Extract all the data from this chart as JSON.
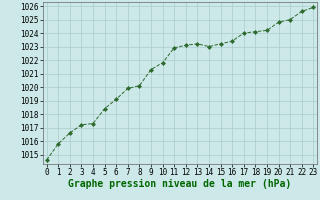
{
  "x": [
    0,
    1,
    2,
    3,
    4,
    5,
    6,
    7,
    8,
    9,
    10,
    11,
    12,
    13,
    14,
    15,
    16,
    17,
    18,
    19,
    20,
    21,
    22,
    23
  ],
  "y": [
    1014.6,
    1015.8,
    1016.6,
    1017.2,
    1017.3,
    1018.4,
    1019.1,
    1019.9,
    1020.1,
    1021.3,
    1021.8,
    1022.9,
    1023.1,
    1023.2,
    1023.0,
    1023.2,
    1023.4,
    1024.0,
    1024.1,
    1024.2,
    1024.8,
    1025.0,
    1025.6,
    1025.9
  ],
  "line_color": "#2d6a2d",
  "marker_color": "#2d6a2d",
  "bg_color": "#cce8e8",
  "grid_color": "#aacccc",
  "title": "Graphe pression niveau de la mer (hPa)",
  "title_color": "#006600",
  "ylim": [
    1014.3,
    1026.3
  ],
  "xlim": [
    -0.3,
    23.3
  ],
  "yticks": [
    1015,
    1016,
    1017,
    1018,
    1019,
    1020,
    1021,
    1022,
    1023,
    1024,
    1025,
    1026
  ],
  "xticks": [
    0,
    1,
    2,
    3,
    4,
    5,
    6,
    7,
    8,
    9,
    10,
    11,
    12,
    13,
    14,
    15,
    16,
    17,
    18,
    19,
    20,
    21,
    22,
    23
  ],
  "tick_label_size": 5.5,
  "title_fontsize": 7,
  "marker_size": 2.0,
  "linewidth": 0.7
}
